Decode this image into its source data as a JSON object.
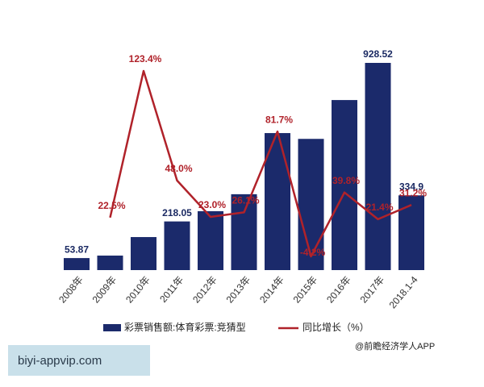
{
  "chart_data": {
    "type": "bar-line",
    "categories": [
      "2008年",
      "2009年",
      "2010年",
      "2011年",
      "2012年",
      "2013年",
      "2014年",
      "2015年",
      "2016年",
      "2017年",
      "2018.1-4"
    ],
    "series": [
      {
        "name": "彩票销售额:体育彩票:竞猜型",
        "color": "#1b2a6b",
        "values": [
          53.87,
          65,
          148,
          218.05,
          264,
          340,
          614,
          588,
          762,
          928.52,
          334.9
        ],
        "value_labels": [
          "53.87",
          null,
          null,
          "218.05",
          null,
          null,
          null,
          null,
          null,
          "928.52",
          "334.9"
        ]
      },
      {
        "name": "同比增长（%）",
        "color": "#b0222a",
        "axis": "y2",
        "values": [
          null,
          22.5,
          123.4,
          48.0,
          23.0,
          26.1,
          81.7,
          -4.2,
          39.8,
          21.4,
          31.2
        ],
        "value_labels": [
          null,
          "22.5%",
          "123.4%",
          "48.0%",
          "23.0%",
          "26.1%",
          "81.7%",
          "-4.2%",
          "39.8%",
          "21.4%",
          "31.2%"
        ]
      }
    ]
  },
  "footer": {
    "credit": "@前瞻经济学人APP",
    "overlay": "biyi-appvip.com"
  }
}
